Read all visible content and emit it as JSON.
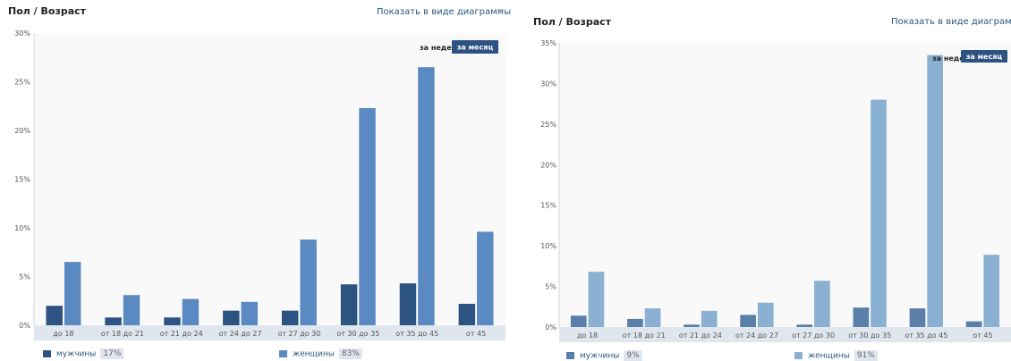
{
  "panels": [
    {
      "title": "Пол / Возраст",
      "diagram_link": "Показать в виде диаграммы",
      "period_week": "за неделю",
      "period_month": "за месяц",
      "legend": [
        {
          "label": "мужчины",
          "pct": "17%"
        },
        {
          "label": "женщины",
          "pct": "83%"
        }
      ]
    },
    {
      "title": "Пол / Возраст",
      "diagram_link": "Показать в виде диаграммы",
      "period_week": "за неделю",
      "period_month": "за месяц",
      "legend": [
        {
          "label": "мужчины",
          "pct": "9%"
        },
        {
          "label": "женщины",
          "pct": "91%"
        }
      ]
    }
  ],
  "chart_data": [
    {
      "type": "bar",
      "categories": [
        "до 18",
        "от 18 до 21",
        "от 21 до 24",
        "от 24 до 27",
        "от 27 до 30",
        "от 30 до 35",
        "от 35 до 45",
        "от 45"
      ],
      "series": [
        {
          "name": "мужчины",
          "values": [
            2.0,
            0.8,
            0.8,
            1.5,
            1.5,
            4.2,
            4.3,
            2.2
          ],
          "color": "#2d5383"
        },
        {
          "name": "женщины",
          "values": [
            6.5,
            3.1,
            2.7,
            2.4,
            8.8,
            22.3,
            26.5,
            9.6
          ],
          "color": "#5b8ac2"
        }
      ],
      "ylim": [
        0,
        30
      ],
      "yticks": [
        "0%",
        "5%",
        "10%",
        "15%",
        "20%",
        "25%",
        "30%"
      ],
      "grid": false,
      "legend_position": "bottom"
    },
    {
      "type": "bar",
      "categories": [
        "до 18",
        "от 18 до 21",
        "от 21 до 24",
        "от 24 до 27",
        "от 27 до 30",
        "от 30 до 35",
        "от 35 до 45",
        "от 45"
      ],
      "series": [
        {
          "name": "мужчины",
          "values": [
            1.4,
            1.0,
            0.3,
            1.5,
            0.3,
            2.4,
            2.3,
            0.7
          ],
          "color": "#5a7fa8"
        },
        {
          "name": "женщины",
          "values": [
            6.8,
            2.3,
            2.0,
            3.0,
            5.7,
            28.0,
            33.5,
            8.9
          ],
          "color": "#8ab0d2"
        }
      ],
      "ylim": [
        0,
        35
      ],
      "yticks": [
        "0%",
        "5%",
        "10%",
        "15%",
        "20%",
        "25%",
        "30%",
        "35%"
      ],
      "grid": false,
      "legend_position": "bottom"
    }
  ]
}
